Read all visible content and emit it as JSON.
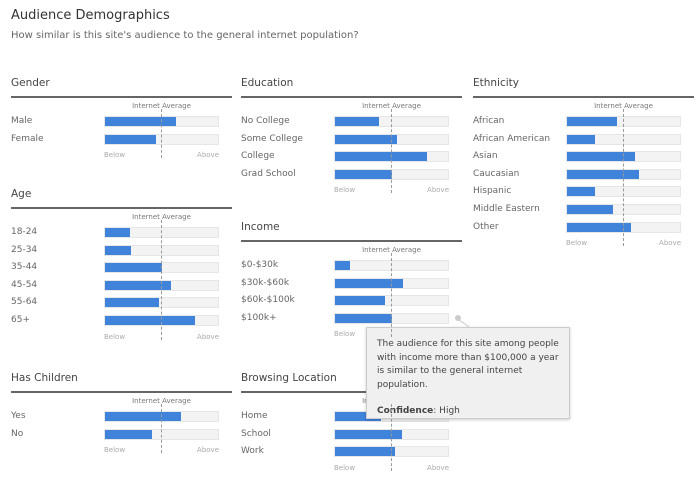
{
  "header": {
    "title": "Audience Demographics",
    "subtitle": "How similar is this site's audience to the general internet population?"
  },
  "colors": {
    "bar": "#3f83db",
    "track": "#f3f3f3"
  },
  "common": {
    "average_label": "Internet Average",
    "below_label": "Below",
    "above_label": "Above"
  },
  "sections": [
    {
      "id": "gender",
      "title": "Gender",
      "rows": [
        {
          "label": "Male",
          "value": 0.63
        },
        {
          "label": "Female",
          "value": 0.45
        }
      ]
    },
    {
      "id": "age",
      "title": "Age",
      "rows": [
        {
          "label": "18-24",
          "value": 0.22
        },
        {
          "label": "25-34",
          "value": 0.23
        },
        {
          "label": "35-44",
          "value": 0.5
        },
        {
          "label": "45-54",
          "value": 0.58
        },
        {
          "label": "55-64",
          "value": 0.48
        },
        {
          "label": "65+",
          "value": 0.8
        }
      ]
    },
    {
      "id": "has-children",
      "title": "Has Children",
      "rows": [
        {
          "label": "Yes",
          "value": 0.67
        },
        {
          "label": "No",
          "value": 0.42
        }
      ]
    },
    {
      "id": "education",
      "title": "Education",
      "rows": [
        {
          "label": "No College",
          "value": 0.39
        },
        {
          "label": "Some College",
          "value": 0.55
        },
        {
          "label": "College",
          "value": 0.81
        },
        {
          "label": "Grad School",
          "value": 0.5
        }
      ]
    },
    {
      "id": "income",
      "title": "Income",
      "rows": [
        {
          "label": "$0-$30k",
          "value": 0.13
        },
        {
          "label": "$30k-$60k",
          "value": 0.6
        },
        {
          "label": "$60k-$100k",
          "value": 0.44
        },
        {
          "label": "$100k+",
          "value": 0.5
        }
      ]
    },
    {
      "id": "browsing-location",
      "title": "Browsing Location",
      "rows": [
        {
          "label": "Home",
          "value": 0.41
        },
        {
          "label": "School",
          "value": 0.59
        },
        {
          "label": "Work",
          "value": 0.53
        }
      ]
    },
    {
      "id": "ethnicity",
      "title": "Ethnicity",
      "rows": [
        {
          "label": "African",
          "value": 0.44
        },
        {
          "label": "African American",
          "value": 0.25
        },
        {
          "label": "Asian",
          "value": 0.6
        },
        {
          "label": "Caucasian",
          "value": 0.64
        },
        {
          "label": "Hispanic",
          "value": 0.25
        },
        {
          "label": "Middle Eastern",
          "value": 0.41
        },
        {
          "label": "Other",
          "value": 0.57
        }
      ]
    }
  ],
  "tooltip": {
    "text": "The audience for this site among people with income more than $100,000 a year is similar to the general internet population.",
    "confidence_label": "Confidence",
    "confidence_value": "High"
  }
}
